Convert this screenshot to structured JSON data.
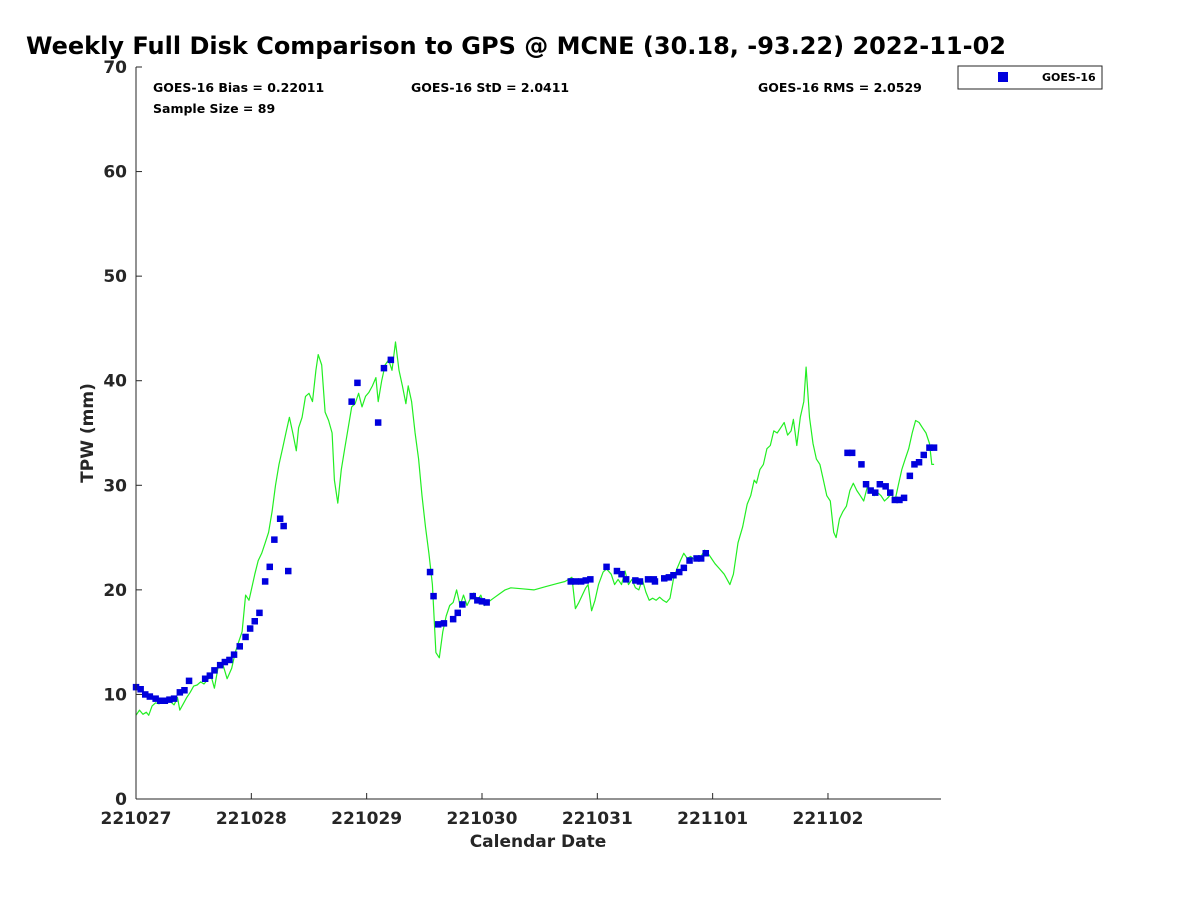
{
  "chart_data": {
    "type": "scatter",
    "title": "Weekly Full Disk Comparison to GPS @ MCNE (30.18, -93.22) 2022-11-02",
    "xlabel": "Calendar Date",
    "ylabel": "TPW (mm)",
    "xlim": [
      0,
      6.98
    ],
    "ylim": [
      0,
      70
    ],
    "x_ticks": [
      0,
      1,
      2,
      3,
      4,
      5,
      6
    ],
    "x_tick_labels": [
      "221027",
      "221028",
      "221029",
      "221030",
      "221031",
      "221101",
      "221102"
    ],
    "y_ticks": [
      0,
      10,
      20,
      30,
      40,
      50,
      60,
      70
    ],
    "x_units": "days since 221027",
    "stats": {
      "bias": "GOES-16 Bias = 0.22011",
      "std": "GOES-16 StD = 2.0411",
      "rms": "GOES-16 RMS = 2.0529",
      "sample_size": "Sample Size = 89"
    },
    "legend": {
      "position": "top-right outside",
      "entries": [
        "GOES-16"
      ]
    },
    "colors": {
      "goes": "#0000dd",
      "gps": "#22ee22",
      "axis": "#262626"
    },
    "series": [
      {
        "name": "GOES-16",
        "kind": "markers",
        "x": [
          0.0,
          0.04,
          0.08,
          0.12,
          0.17,
          0.21,
          0.25,
          0.29,
          0.33,
          0.38,
          0.42,
          0.46,
          0.6,
          0.64,
          0.68,
          0.73,
          0.77,
          0.81,
          0.85,
          0.9,
          0.95,
          0.99,
          1.03,
          1.07,
          1.12,
          1.16,
          1.2,
          1.25,
          1.28,
          1.32,
          1.87,
          1.92,
          2.1,
          2.15,
          2.21,
          2.55,
          2.58,
          2.62,
          2.67,
          2.75,
          2.79,
          2.83,
          2.92,
          2.96,
          3.0,
          3.04,
          3.77,
          3.81,
          3.86,
          3.9,
          3.94,
          4.08,
          4.17,
          4.21,
          4.25,
          4.33,
          4.37,
          4.44,
          4.49,
          4.5,
          4.58,
          4.62,
          4.66,
          4.71,
          4.75,
          4.8,
          4.86,
          4.9,
          4.94,
          6.17,
          6.21,
          6.29,
          6.33,
          6.37,
          6.41,
          6.45,
          6.5,
          6.54,
          6.58,
          6.62,
          6.66,
          6.71,
          6.75,
          6.79,
          6.83,
          6.88,
          6.92
        ],
        "y": [
          10.7,
          10.5,
          10.0,
          9.8,
          9.6,
          9.4,
          9.4,
          9.5,
          9.6,
          10.2,
          10.4,
          11.3,
          11.5,
          11.8,
          12.3,
          12.8,
          13.1,
          13.3,
          13.8,
          14.6,
          15.5,
          16.3,
          17.0,
          17.8,
          20.8,
          22.2,
          24.8,
          26.8,
          26.1,
          21.8,
          38.0,
          39.8,
          36.0,
          41.2,
          42.0,
          21.7,
          19.4,
          16.7,
          16.8,
          17.2,
          17.8,
          18.6,
          19.4,
          19.0,
          18.9,
          18.8,
          20.8,
          20.8,
          20.8,
          20.9,
          21.0,
          22.2,
          21.8,
          21.5,
          21.0,
          20.9,
          20.8,
          21.0,
          21.0,
          20.8,
          21.1,
          21.2,
          21.4,
          21.7,
          22.1,
          22.8,
          23.0,
          23.0,
          23.5,
          33.1,
          33.1,
          32.0,
          30.1,
          29.5,
          29.3,
          30.1,
          29.9,
          29.3,
          28.6,
          28.6,
          28.8,
          30.9,
          32.0,
          32.2,
          32.9,
          33.6,
          33.6
        ]
      },
      {
        "name": "",
        "kind": "line",
        "points": [
          [
            0.0,
            8.0
          ],
          [
            0.03,
            8.5
          ],
          [
            0.06,
            8.1
          ],
          [
            0.09,
            8.3
          ],
          [
            0.11,
            8.0
          ],
          [
            0.14,
            8.9
          ],
          [
            0.17,
            9.2
          ],
          [
            0.2,
            9.1
          ],
          [
            0.23,
            9.4
          ],
          [
            0.26,
            9.6
          ],
          [
            0.29,
            9.4
          ],
          [
            0.33,
            9.0
          ],
          [
            0.36,
            9.7
          ],
          [
            0.38,
            8.5
          ],
          [
            0.41,
            9.1
          ],
          [
            0.44,
            9.7
          ],
          [
            0.47,
            10.2
          ],
          [
            0.5,
            10.8
          ],
          [
            0.53,
            10.9
          ],
          [
            0.56,
            11.2
          ],
          [
            0.59,
            11.0
          ],
          [
            0.62,
            11.4
          ],
          [
            0.65,
            11.8
          ],
          [
            0.68,
            10.6
          ],
          [
            0.71,
            12.5
          ],
          [
            0.75,
            13.0
          ],
          [
            0.79,
            11.5
          ],
          [
            0.83,
            12.5
          ],
          [
            0.86,
            14.0
          ],
          [
            0.89,
            15.0
          ],
          [
            0.92,
            16.0
          ],
          [
            0.95,
            19.5
          ],
          [
            0.98,
            19.0
          ],
          [
            1.01,
            20.5
          ],
          [
            1.03,
            21.5
          ],
          [
            1.06,
            22.8
          ],
          [
            1.09,
            23.5
          ],
          [
            1.12,
            24.5
          ],
          [
            1.15,
            25.5
          ],
          [
            1.18,
            27.5
          ],
          [
            1.21,
            30.0
          ],
          [
            1.24,
            32.0
          ],
          [
            1.27,
            33.5
          ],
          [
            1.3,
            35.0
          ],
          [
            1.33,
            36.5
          ],
          [
            1.36,
            35.0
          ],
          [
            1.39,
            33.3
          ],
          [
            1.41,
            35.5
          ],
          [
            1.44,
            36.5
          ],
          [
            1.47,
            38.5
          ],
          [
            1.5,
            38.8
          ],
          [
            1.53,
            38.0
          ],
          [
            1.56,
            41.0
          ],
          [
            1.58,
            42.5
          ],
          [
            1.61,
            41.5
          ],
          [
            1.64,
            37.0
          ],
          [
            1.67,
            36.2
          ],
          [
            1.7,
            35.0
          ],
          [
            1.72,
            30.5
          ],
          [
            1.75,
            28.3
          ],
          [
            1.78,
            31.5
          ],
          [
            1.81,
            33.5
          ],
          [
            1.84,
            35.5
          ],
          [
            1.87,
            37.5
          ],
          [
            1.9,
            37.8
          ],
          [
            1.93,
            38.8
          ],
          [
            1.96,
            37.5
          ],
          [
            1.99,
            38.5
          ],
          [
            2.02,
            38.9
          ],
          [
            2.05,
            39.5
          ],
          [
            2.08,
            40.3
          ],
          [
            2.1,
            38.0
          ],
          [
            2.13,
            40.0
          ],
          [
            2.16,
            41.5
          ],
          [
            2.19,
            42.0
          ],
          [
            2.22,
            41.0
          ],
          [
            2.25,
            43.7
          ],
          [
            2.28,
            41.0
          ],
          [
            2.31,
            39.5
          ],
          [
            2.34,
            37.8
          ],
          [
            2.36,
            39.5
          ],
          [
            2.39,
            38.0
          ],
          [
            2.42,
            35.0
          ],
          [
            2.45,
            32.5
          ],
          [
            2.48,
            29.0
          ],
          [
            2.51,
            26.0
          ],
          [
            2.54,
            23.5
          ],
          [
            2.57,
            20.5
          ],
          [
            2.6,
            14.0
          ],
          [
            2.63,
            13.5
          ],
          [
            2.66,
            16.0
          ],
          [
            2.69,
            17.5
          ],
          [
            2.72,
            18.5
          ],
          [
            2.75,
            18.8
          ],
          [
            2.78,
            20.0
          ],
          [
            2.81,
            18.5
          ],
          [
            2.84,
            19.5
          ],
          [
            2.87,
            18.5
          ],
          [
            2.9,
            19.2
          ],
          [
            2.93,
            19.7
          ],
          [
            2.96,
            19.0
          ],
          [
            2.99,
            19.5
          ],
          [
            3.02,
            18.5
          ],
          [
            3.05,
            18.8
          ],
          [
            3.1,
            19.2
          ],
          [
            3.15,
            19.6
          ],
          [
            3.2,
            20.0
          ],
          [
            3.25,
            20.2
          ],
          [
            3.35,
            20.1
          ],
          [
            3.45,
            20.0
          ],
          [
            3.55,
            20.3
          ],
          [
            3.65,
            20.6
          ],
          [
            3.72,
            20.8
          ],
          [
            3.78,
            21.2
          ],
          [
            3.81,
            18.2
          ],
          [
            3.84,
            18.8
          ],
          [
            3.87,
            19.5
          ],
          [
            3.9,
            20.2
          ],
          [
            3.92,
            20.5
          ],
          [
            3.95,
            18.0
          ],
          [
            3.98,
            19.0
          ],
          [
            4.01,
            20.5
          ],
          [
            4.05,
            21.7
          ],
          [
            4.08,
            22.0
          ],
          [
            4.12,
            21.5
          ],
          [
            4.15,
            20.5
          ],
          [
            4.18,
            21.0
          ],
          [
            4.21,
            20.5
          ],
          [
            4.24,
            21.8
          ],
          [
            4.27,
            20.5
          ],
          [
            4.3,
            21.0
          ],
          [
            4.33,
            20.2
          ],
          [
            4.36,
            20.0
          ],
          [
            4.39,
            21.0
          ],
          [
            4.42,
            19.8
          ],
          [
            4.45,
            19.0
          ],
          [
            4.48,
            19.2
          ],
          [
            4.51,
            19.0
          ],
          [
            4.54,
            19.3
          ],
          [
            4.57,
            19.0
          ],
          [
            4.6,
            18.8
          ],
          [
            4.63,
            19.2
          ],
          [
            4.66,
            21.0
          ],
          [
            4.69,
            22.0
          ],
          [
            4.72,
            22.8
          ],
          [
            4.75,
            23.5
          ],
          [
            4.78,
            23.0
          ],
          [
            4.81,
            23.2
          ],
          [
            4.84,
            22.9
          ],
          [
            4.87,
            23.0
          ],
          [
            4.9,
            23.2
          ],
          [
            4.93,
            23.8
          ],
          [
            4.96,
            23.5
          ],
          [
            4.99,
            23.0
          ],
          [
            5.02,
            22.5
          ],
          [
            5.06,
            22.0
          ],
          [
            5.1,
            21.5
          ],
          [
            5.15,
            20.5
          ],
          [
            5.18,
            21.5
          ],
          [
            5.22,
            24.5
          ],
          [
            5.26,
            26.0
          ],
          [
            5.3,
            28.2
          ],
          [
            5.33,
            29.0
          ],
          [
            5.36,
            30.5
          ],
          [
            5.38,
            30.2
          ],
          [
            5.41,
            31.5
          ],
          [
            5.44,
            32.0
          ],
          [
            5.47,
            33.5
          ],
          [
            5.5,
            33.8
          ],
          [
            5.53,
            35.2
          ],
          [
            5.56,
            35.0
          ],
          [
            5.59,
            35.5
          ],
          [
            5.62,
            36.0
          ],
          [
            5.65,
            34.8
          ],
          [
            5.68,
            35.2
          ],
          [
            5.7,
            36.3
          ],
          [
            5.73,
            33.8
          ],
          [
            5.76,
            36.5
          ],
          [
            5.79,
            38.0
          ],
          [
            5.81,
            41.3
          ],
          [
            5.84,
            36.5
          ],
          [
            5.87,
            34.0
          ],
          [
            5.9,
            32.5
          ],
          [
            5.93,
            32.0
          ],
          [
            5.96,
            30.5
          ],
          [
            5.99,
            29.0
          ],
          [
            6.02,
            28.5
          ],
          [
            6.05,
            25.5
          ],
          [
            6.07,
            25.0
          ],
          [
            6.1,
            26.8
          ],
          [
            6.13,
            27.5
          ],
          [
            6.16,
            28.0
          ],
          [
            6.19,
            29.5
          ],
          [
            6.22,
            30.2
          ],
          [
            6.25,
            29.5
          ],
          [
            6.28,
            29.0
          ],
          [
            6.31,
            28.5
          ],
          [
            6.34,
            29.8
          ],
          [
            6.37,
            29.5
          ],
          [
            6.4,
            29.0
          ],
          [
            6.43,
            29.3
          ],
          [
            6.46,
            29.0
          ],
          [
            6.49,
            28.5
          ],
          [
            6.52,
            28.8
          ],
          [
            6.55,
            29.2
          ],
          [
            6.58,
            28.5
          ],
          [
            6.61,
            30.0
          ],
          [
            6.64,
            31.5
          ],
          [
            6.67,
            32.5
          ],
          [
            6.7,
            33.5
          ],
          [
            6.73,
            35.0
          ],
          [
            6.76,
            36.2
          ],
          [
            6.79,
            36.0
          ],
          [
            6.82,
            35.5
          ],
          [
            6.85,
            35.0
          ],
          [
            6.88,
            34.0
          ],
          [
            6.9,
            32.0
          ],
          [
            6.92,
            32.0
          ]
        ]
      }
    ]
  }
}
